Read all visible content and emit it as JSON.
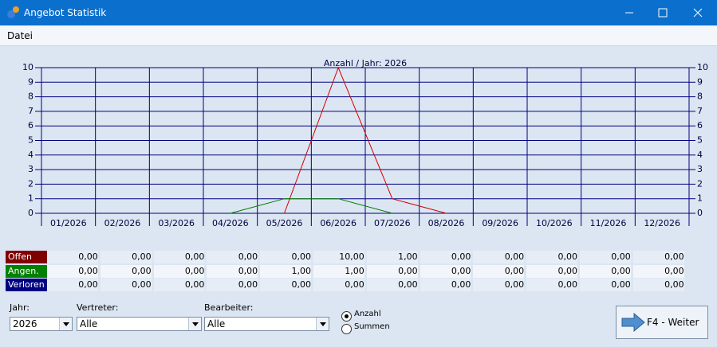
{
  "window": {
    "title": "Angebot Statistik"
  },
  "menu": [
    "Datei"
  ],
  "chart_data": {
    "type": "line",
    "title": "Anzahl / Jahr: 2026",
    "categories": [
      "01/2026",
      "02/2026",
      "03/2026",
      "04/2026",
      "05/2026",
      "06/2026",
      "07/2026",
      "08/2026",
      "09/2026",
      "10/2026",
      "11/2026",
      "12/2026"
    ],
    "series": [
      {
        "color": "#d00000",
        "values": [
          null,
          null,
          null,
          null,
          0,
          10,
          1,
          0,
          null,
          null,
          null,
          null
        ]
      },
      {
        "color": "#008000",
        "values": [
          null,
          null,
          null,
          0,
          1,
          1,
          0,
          null,
          null,
          null,
          null,
          null
        ]
      }
    ],
    "ylim": [
      0,
      10
    ],
    "yticks": [
      0,
      1,
      2,
      3,
      4,
      5,
      6,
      7,
      8,
      9,
      10
    ],
    "grid": true,
    "grid_color": "#000080"
  },
  "table": {
    "rows": [
      {
        "label": "Offen",
        "color": "#800000",
        "cells": [
          "0,00",
          "0,00",
          "0,00",
          "0,00",
          "0,00",
          "10,00",
          "1,00",
          "0,00",
          "0,00",
          "0,00",
          "0,00",
          "0,00"
        ]
      },
      {
        "label": "Angen.",
        "color": "#008000",
        "cells": [
          "0,00",
          "0,00",
          "0,00",
          "0,00",
          "1,00",
          "1,00",
          "0,00",
          "0,00",
          "0,00",
          "0,00",
          "0,00",
          "0,00"
        ]
      },
      {
        "label": "Verloren",
        "color": "#000080",
        "cells": [
          "0,00",
          "0,00",
          "0,00",
          "0,00",
          "0,00",
          "0,00",
          "0,00",
          "0,00",
          "0,00",
          "0,00",
          "0,00",
          "0,00"
        ]
      }
    ]
  },
  "controls": {
    "jahr": {
      "label": "Jahr:",
      "value": "2026"
    },
    "vertreter": {
      "label": "Vertreter:",
      "value": "Alle"
    },
    "bearbeiter": {
      "label": "Bearbeiter:",
      "value": "Alle"
    },
    "radios": [
      {
        "label": "Anzahl",
        "checked": true
      },
      {
        "label": "Summen",
        "checked": false
      }
    ],
    "button": "F4 - Weiter"
  }
}
